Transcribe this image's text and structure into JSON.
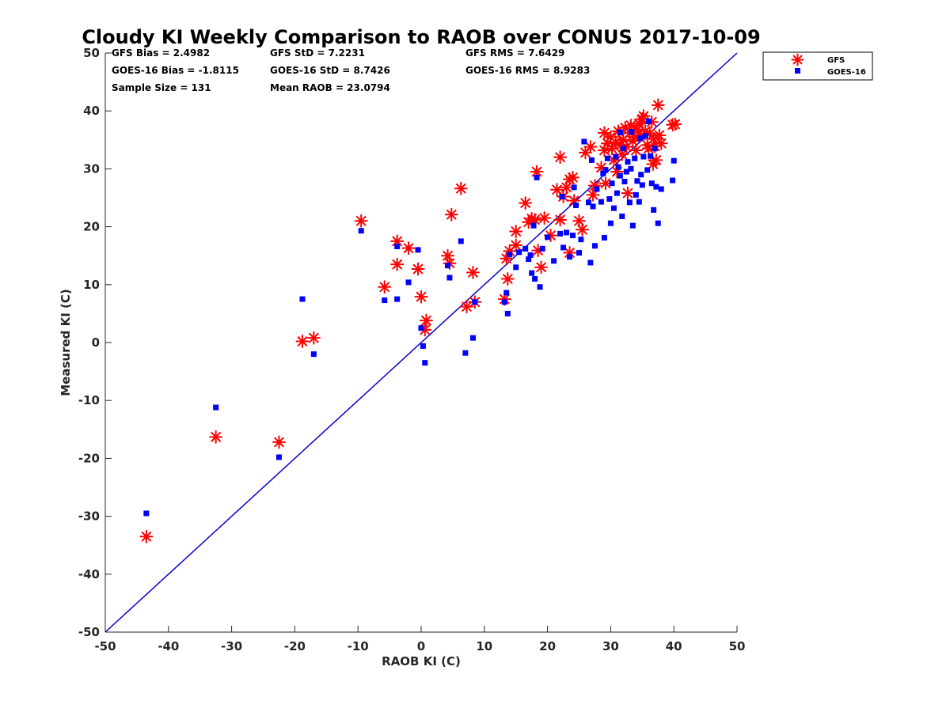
{
  "chart_data": {
    "type": "scatter",
    "title": "Cloudy KI Weekly Comparison to RAOB over CONUS 2017-10-09",
    "xlabel": "RAOB KI (C)",
    "ylabel": "Measured KI (C)",
    "xlim": [
      -50,
      50
    ],
    "ylim": [
      -50,
      50
    ],
    "xticks": [
      "-50",
      "-40",
      "-30",
      "-20",
      "-10",
      "0",
      "10",
      "20",
      "30",
      "40",
      "50"
    ],
    "yticks": [
      "-50",
      "-40",
      "-30",
      "-20",
      "-10",
      "0",
      "10",
      "20",
      "30",
      "40",
      "50"
    ],
    "stats": [
      "GFS Bias = 2.4982",
      "GFS StD = 7.2231",
      "GFS RMS = 7.6429",
      "GOES-16 Bias = -1.8115",
      "GOES-16 StD = 8.7426",
      "GOES-16 RMS = 8.9283",
      "Sample Size = 131",
      "Mean RAOB = 23.0794"
    ],
    "legend_position": "outside top-right",
    "reference_line": "1:1",
    "series": [
      {
        "name": "GFS",
        "marker": "asterisk",
        "color": "#ff0000",
        "points": [
          [
            -43.5,
            -33.5
          ],
          [
            -32.5,
            -16.3
          ],
          [
            -22.5,
            -17.2
          ],
          [
            -18.8,
            0.2
          ],
          [
            -17,
            0.8
          ],
          [
            -9.5,
            21
          ],
          [
            -5.8,
            9.6
          ],
          [
            -3.8,
            17.5
          ],
          [
            -3.8,
            13.5
          ],
          [
            -2,
            16.3
          ],
          [
            -0.5,
            12.7
          ],
          [
            0,
            7.9
          ],
          [
            0.6,
            2.2
          ],
          [
            0.8,
            3.8
          ],
          [
            4.2,
            15
          ],
          [
            4.5,
            13.7
          ],
          [
            4.8,
            22.1
          ],
          [
            6.3,
            26.6
          ],
          [
            7.2,
            6.2
          ],
          [
            8.2,
            12.1
          ],
          [
            8.5,
            7
          ],
          [
            13.2,
            7.5
          ],
          [
            13.5,
            14.5
          ],
          [
            13.7,
            11
          ],
          [
            14,
            15.8
          ],
          [
            15,
            19.2
          ],
          [
            15,
            16.8
          ],
          [
            16.5,
            24.1
          ],
          [
            17,
            20.8
          ],
          [
            17.5,
            21.4
          ],
          [
            18,
            21.2
          ],
          [
            18.3,
            29.5
          ],
          [
            18.5,
            15.9
          ],
          [
            19,
            13
          ],
          [
            19.5,
            21.5
          ],
          [
            20.5,
            18.5
          ],
          [
            21.5,
            26.4
          ],
          [
            22,
            32
          ],
          [
            22,
            21.2
          ],
          [
            22.5,
            25.2
          ],
          [
            23,
            26.8
          ],
          [
            23.5,
            28.2
          ],
          [
            23.5,
            15.5
          ],
          [
            24,
            28.5
          ],
          [
            24.2,
            24.5
          ],
          [
            25,
            21
          ],
          [
            25.5,
            19.5
          ],
          [
            26,
            32.8
          ],
          [
            26.8,
            33.8
          ],
          [
            27.2,
            25.5
          ],
          [
            27.5,
            27.1
          ],
          [
            28.5,
            30.2
          ],
          [
            29,
            36.2
          ],
          [
            29,
            33.2
          ],
          [
            29.2,
            27.5
          ],
          [
            29.5,
            34.4
          ],
          [
            30,
            35.5
          ],
          [
            30.2,
            33.5
          ],
          [
            30.5,
            31.5
          ],
          [
            30.8,
            34.6
          ],
          [
            31,
            29.5
          ],
          [
            31.2,
            36.5
          ],
          [
            31.5,
            34.1
          ],
          [
            31.8,
            32.5
          ],
          [
            32,
            35
          ],
          [
            32.3,
            37.1
          ],
          [
            32.5,
            33.8
          ],
          [
            32.7,
            25.8
          ],
          [
            33,
            36.2
          ],
          [
            33.2,
            37.5
          ],
          [
            33.5,
            34.8
          ],
          [
            33.8,
            35.5
          ],
          [
            34,
            33.2
          ],
          [
            34.2,
            36.8
          ],
          [
            34.5,
            37.8
          ],
          [
            34.8,
            35.8
          ],
          [
            35,
            38.6
          ],
          [
            35.2,
            39.1
          ],
          [
            35.5,
            36.5
          ],
          [
            35.8,
            34.1
          ],
          [
            36,
            33.5
          ],
          [
            36.2,
            36.1
          ],
          [
            36.5,
            38.1
          ],
          [
            36.7,
            30.8
          ],
          [
            37,
            33.9
          ],
          [
            37.2,
            31.5
          ],
          [
            37.5,
            41
          ],
          [
            37.7,
            35.8
          ],
          [
            38,
            34.4
          ],
          [
            39.8,
            37.6
          ],
          [
            40.2,
            37.7
          ],
          [
            36.8,
            35.2
          ]
        ]
      },
      {
        "name": "GOES-16",
        "marker": "square",
        "color": "#0000ff",
        "points": [
          [
            -43.5,
            -29.5
          ],
          [
            -32.5,
            -11.2
          ],
          [
            -22.5,
            -19.8
          ],
          [
            -18.8,
            7.5
          ],
          [
            -17,
            -2
          ],
          [
            -9.5,
            19.3
          ],
          [
            -5.8,
            7.3
          ],
          [
            -3.8,
            16.6
          ],
          [
            -3.8,
            7.5
          ],
          [
            -2,
            10.4
          ],
          [
            -0.5,
            16
          ],
          [
            0,
            2.5
          ],
          [
            0.3,
            -0.6
          ],
          [
            0.6,
            -3.5
          ],
          [
            4.2,
            13.3
          ],
          [
            4.5,
            11.2
          ],
          [
            6.3,
            17.5
          ],
          [
            7,
            -1.8
          ],
          [
            8.2,
            0.8
          ],
          [
            8.5,
            7
          ],
          [
            13.2,
            7
          ],
          [
            13.5,
            8.6
          ],
          [
            13.7,
            5
          ],
          [
            14,
            15.2
          ],
          [
            15,
            13
          ],
          [
            15.5,
            15.6
          ],
          [
            16.5,
            16.2
          ],
          [
            17,
            14.4
          ],
          [
            17.3,
            15.1
          ],
          [
            17.5,
            12
          ],
          [
            17.8,
            20.2
          ],
          [
            18,
            11
          ],
          [
            18.3,
            28.5
          ],
          [
            18.8,
            9.6
          ],
          [
            19.2,
            16.2
          ],
          [
            20,
            18.2
          ],
          [
            21,
            14.1
          ],
          [
            22,
            18.8
          ],
          [
            22.3,
            25.2
          ],
          [
            22.5,
            16.4
          ],
          [
            23,
            19
          ],
          [
            23.5,
            14.8
          ],
          [
            24,
            18.5
          ],
          [
            24.2,
            26.8
          ],
          [
            24.5,
            23.7
          ],
          [
            25,
            15.5
          ],
          [
            25.3,
            17.8
          ],
          [
            25.8,
            34.7
          ],
          [
            26.5,
            24.2
          ],
          [
            26.8,
            13.8
          ],
          [
            27,
            31.5
          ],
          [
            27.2,
            23.5
          ],
          [
            27.5,
            16.7
          ],
          [
            27.8,
            26.5
          ],
          [
            28.5,
            24.3
          ],
          [
            28.8,
            29.2
          ],
          [
            29,
            18.1
          ],
          [
            29.2,
            29.8
          ],
          [
            29.5,
            31.8
          ],
          [
            29.8,
            24.8
          ],
          [
            30,
            20.6
          ],
          [
            30.2,
            27.5
          ],
          [
            30.5,
            23.2
          ],
          [
            30.8,
            32.1
          ],
          [
            31,
            25.8
          ],
          [
            31.2,
            30.3
          ],
          [
            31.5,
            28.8
          ],
          [
            31.8,
            21.8
          ],
          [
            32,
            33.5
          ],
          [
            32.2,
            27.8
          ],
          [
            32.5,
            29.5
          ],
          [
            32.7,
            31.2
          ],
          [
            33,
            24.2
          ],
          [
            33.2,
            30
          ],
          [
            33.5,
            20.2
          ],
          [
            33.8,
            31.8
          ],
          [
            34,
            25.5
          ],
          [
            34.2,
            27.9
          ],
          [
            34.5,
            24.3
          ],
          [
            34.8,
            29
          ],
          [
            35,
            27.2
          ],
          [
            35.2,
            32.1
          ],
          [
            35.5,
            35.7
          ],
          [
            35.8,
            29.8
          ],
          [
            36,
            38.2
          ],
          [
            36.3,
            32.2
          ],
          [
            36.5,
            27.5
          ],
          [
            36.8,
            22.9
          ],
          [
            37,
            33.5
          ],
          [
            37.2,
            26.9
          ],
          [
            37.5,
            20.6
          ],
          [
            38,
            26.5
          ],
          [
            39.8,
            28
          ],
          [
            40,
            31.4
          ],
          [
            31.5,
            36.3
          ],
          [
            33.3,
            36.4
          ],
          [
            34.7,
            35.3
          ]
        ]
      }
    ]
  }
}
